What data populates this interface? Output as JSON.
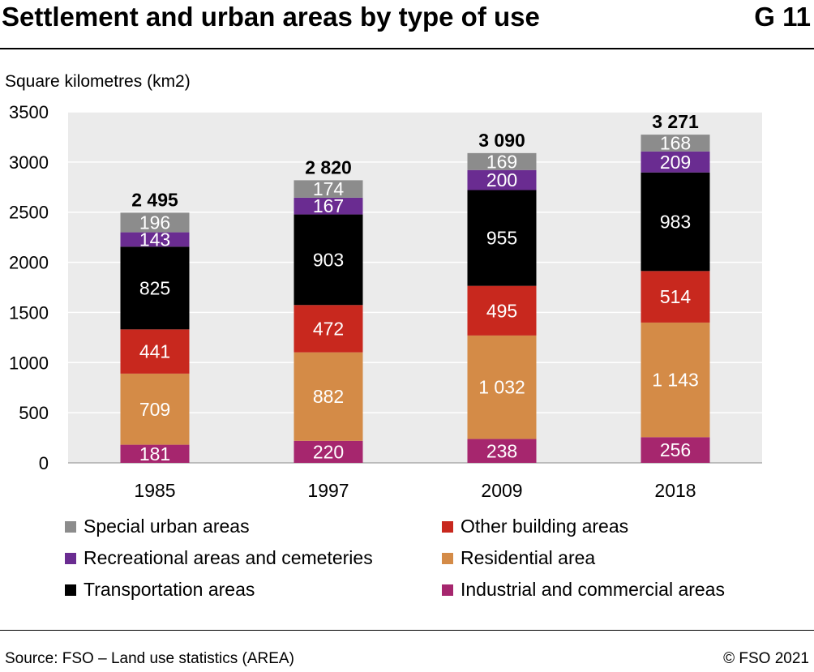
{
  "header": {
    "title": "Settlement and urban areas by type of use",
    "code": "G 11"
  },
  "chart_data": {
    "type": "bar",
    "stacked": true,
    "ylabel": "Square kilometres (km2)",
    "ylim": [
      0,
      3500
    ],
    "yticks": [
      0,
      500,
      1000,
      1500,
      2000,
      2500,
      3000,
      3500
    ],
    "grid": true,
    "categories": [
      "1985",
      "1997",
      "2009",
      "2018"
    ],
    "totals": [
      2495,
      2820,
      3090,
      3271
    ],
    "total_labels": [
      "2 495",
      "2 820",
      "3 090",
      "3 271"
    ],
    "series": [
      {
        "name": "Industrial and commercial areas",
        "color": "#a6266e",
        "values": [
          181,
          220,
          238,
          256
        ],
        "labels": [
          "181",
          "220",
          "238",
          "256"
        ]
      },
      {
        "name": "Residential area",
        "color": "#d48b47",
        "values": [
          709,
          882,
          1032,
          1143
        ],
        "labels": [
          "709",
          "882",
          "1 032",
          "1 143"
        ]
      },
      {
        "name": "Other building areas",
        "color": "#c8281e",
        "values": [
          441,
          472,
          495,
          514
        ],
        "labels": [
          "441",
          "472",
          "495",
          "514"
        ]
      },
      {
        "name": "Transportation areas",
        "color": "#000000",
        "values": [
          825,
          903,
          955,
          983
        ],
        "labels": [
          "825",
          "903",
          "955",
          "983"
        ]
      },
      {
        "name": "Recreational areas and cemeteries",
        "color": "#6a2c91",
        "values": [
          143,
          167,
          200,
          209
        ],
        "labels": [
          "143",
          "167",
          "200",
          "209"
        ]
      },
      {
        "name": "Special urban areas",
        "color": "#8c8c8c",
        "values": [
          196,
          174,
          169,
          168
        ],
        "labels": [
          "196",
          "174",
          "169",
          "168"
        ]
      }
    ],
    "legend": {
      "placement": "bottom",
      "order": [
        "Special urban areas",
        "Recreational areas and cemeteries",
        "Transportation areas",
        "Other building areas",
        "Residential area",
        "Industrial and commercial areas"
      ]
    }
  },
  "footer": {
    "source": "Source: FSO – Land use statistics (AREA)",
    "copyright": "© FSO 2021"
  }
}
